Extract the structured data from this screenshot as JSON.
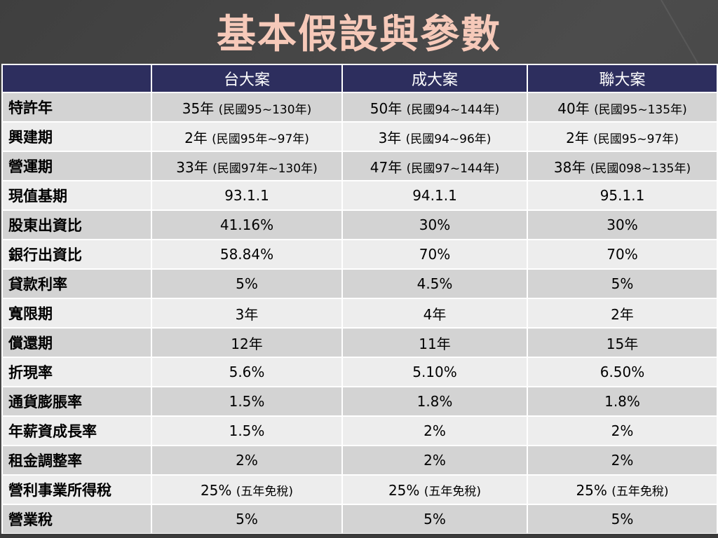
{
  "title": "基本假設與參數",
  "table": {
    "headers": [
      "",
      "台大案",
      "成大案",
      "聯大案"
    ],
    "rows": [
      {
        "label": "特許年",
        "cells": [
          {
            "main": "35年 ",
            "note": "(民國95~130年)"
          },
          {
            "main": "50年 ",
            "note": "(民國94~144年)"
          },
          {
            "main": "40年 ",
            "note": "(民國95~135年)"
          }
        ]
      },
      {
        "label": "興建期",
        "cells": [
          {
            "main": "2年 ",
            "note": "(民國95年~97年)"
          },
          {
            "main": "3年 ",
            "note": "(民國94~96年)"
          },
          {
            "main": "2年 ",
            "note": "(民國95~97年)"
          }
        ]
      },
      {
        "label": "營運期",
        "cells": [
          {
            "main": "33年 ",
            "note": "(民國97年~130年)"
          },
          {
            "main": "47年 ",
            "note": "(民國97~144年)"
          },
          {
            "main": "38年 ",
            "note": "(民國098~135年)"
          }
        ]
      },
      {
        "label": "現值基期",
        "cells": [
          {
            "main": "93.1.1",
            "note": ""
          },
          {
            "main": "94.1.1",
            "note": ""
          },
          {
            "main": "95.1.1",
            "note": ""
          }
        ]
      },
      {
        "label": "股東出資比",
        "cells": [
          {
            "main": "41.16%",
            "note": ""
          },
          {
            "main": "30%",
            "note": ""
          },
          {
            "main": "30%",
            "note": ""
          }
        ]
      },
      {
        "label": "銀行出資比",
        "cells": [
          {
            "main": "58.84%",
            "note": ""
          },
          {
            "main": "70%",
            "note": ""
          },
          {
            "main": "70%",
            "note": ""
          }
        ]
      },
      {
        "label": "貸款利率",
        "cells": [
          {
            "main": "5%",
            "note": ""
          },
          {
            "main": "4.5%",
            "note": ""
          },
          {
            "main": "5%",
            "note": ""
          }
        ]
      },
      {
        "label": "寬限期",
        "cells": [
          {
            "main": "3年",
            "note": ""
          },
          {
            "main": "4年",
            "note": ""
          },
          {
            "main": "2年",
            "note": ""
          }
        ]
      },
      {
        "label": "償還期",
        "cells": [
          {
            "main": "12年",
            "note": ""
          },
          {
            "main": "11年",
            "note": ""
          },
          {
            "main": "15年",
            "note": ""
          }
        ]
      },
      {
        "label": "折現率",
        "cells": [
          {
            "main": "5.6%",
            "note": ""
          },
          {
            "main": "5.10%",
            "note": ""
          },
          {
            "main": "6.50%",
            "note": ""
          }
        ]
      },
      {
        "label": "通貨膨脹率",
        "cells": [
          {
            "main": "1.5%",
            "note": ""
          },
          {
            "main": "1.8%",
            "note": ""
          },
          {
            "main": "1.8%",
            "note": ""
          }
        ]
      },
      {
        "label": "年薪資成長率",
        "cells": [
          {
            "main": "1.5%",
            "note": ""
          },
          {
            "main": "2%",
            "note": ""
          },
          {
            "main": "2%",
            "note": ""
          }
        ]
      },
      {
        "label": "租金調整率",
        "cells": [
          {
            "main": "2%",
            "note": ""
          },
          {
            "main": "2%",
            "note": ""
          },
          {
            "main": "2%",
            "note": ""
          }
        ]
      },
      {
        "label": "營利事業所得稅",
        "cells": [
          {
            "main": "25% ",
            "note": "(五年免稅)"
          },
          {
            "main": "25% ",
            "note": "(五年免稅)"
          },
          {
            "main": "25% ",
            "note": "(五年免稅)"
          }
        ]
      },
      {
        "label": "營業稅",
        "cells": [
          {
            "main": "5%",
            "note": ""
          },
          {
            "main": "5%",
            "note": ""
          },
          {
            "main": "5%",
            "note": ""
          }
        ]
      }
    ]
  },
  "colors": {
    "title": "#f6c9b9",
    "header_bg": "#2d2e5e",
    "row_dark": "#d3d3d3",
    "row_light": "#ededed",
    "background": "#4a4a4a"
  }
}
